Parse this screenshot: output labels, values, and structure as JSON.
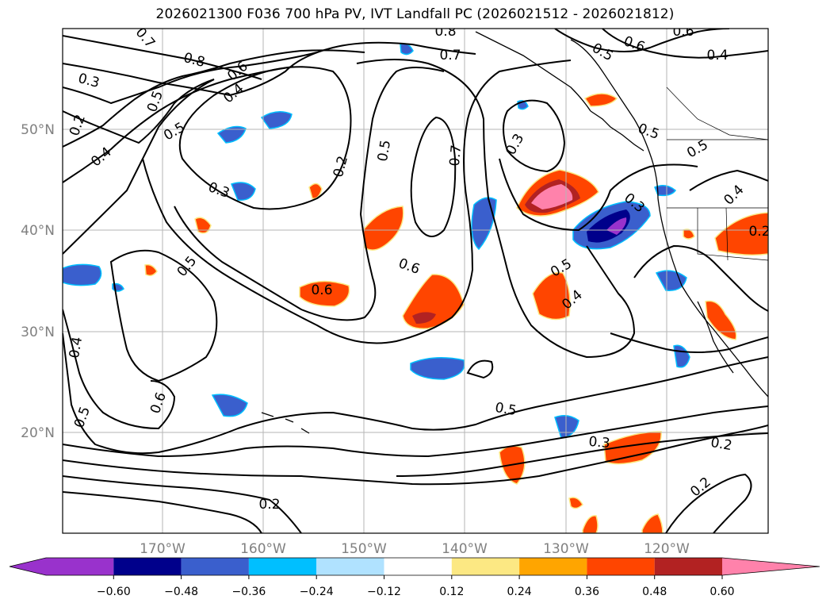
{
  "title": "2026021300 F036 700 hPa PV, IVT Landfall PC (2026021512 - 2026021812)",
  "lat_labels": [
    "50°N",
    "40°N",
    "30°N",
    "20°N"
  ],
  "lon_labels": [
    "170°W",
    "160°W",
    "150°W",
    "140°W",
    "130°W",
    "120°W"
  ],
  "colorbar": {
    "ticks": [
      "−0.60",
      "−0.48",
      "−0.36",
      "−0.24",
      "−0.12",
      "0.12",
      "0.24",
      "0.36",
      "0.48",
      "0.60"
    ],
    "colors": {
      "under": "#9932cc",
      "c1": "#00008b",
      "c2": "#3a5fcd",
      "c3": "#00bfff",
      "c4": "#b0e2ff",
      "c5": "#ffffff",
      "c6": "#fce883",
      "c7": "#ffa500",
      "c8": "#ff4500",
      "c9": "#b22222",
      "over": "#ff82ab"
    }
  },
  "contour_labels": [
    {
      "text": "0.7",
      "angle": 50
    },
    {
      "text": "0.8",
      "angle": 15
    },
    {
      "text": "0.3",
      "angle": 15
    },
    {
      "text": "0.6",
      "angle": -40
    },
    {
      "text": "0.5",
      "angle": -70
    },
    {
      "text": "0.4",
      "angle": -40
    },
    {
      "text": "0.2",
      "angle": -70
    },
    {
      "text": "0.5",
      "angle": -30
    },
    {
      "text": "0.4",
      "angle": -40
    },
    {
      "text": "0.3",
      "angle": 20
    },
    {
      "text": "0.2",
      "angle": -75
    },
    {
      "text": "0.5",
      "angle": -80
    },
    {
      "text": "0.7",
      "angle": -85
    },
    {
      "text": "0.3",
      "angle": -60
    },
    {
      "text": "0.8",
      "angle": 0
    },
    {
      "text": "0.7",
      "angle": 0
    },
    {
      "text": "0.5",
      "angle": 30
    },
    {
      "text": "0.6",
      "angle": 20
    },
    {
      "text": "0.6",
      "angle": 0
    },
    {
      "text": "0.4",
      "angle": 0
    },
    {
      "text": "0.5",
      "angle": 20
    },
    {
      "text": "0.5",
      "angle": -30
    },
    {
      "text": "0.3",
      "angle": 40
    },
    {
      "text": "0.6",
      "angle": 20
    },
    {
      "text": "0.5",
      "angle": -50
    },
    {
      "text": "0.6",
      "angle": 0
    },
    {
      "text": "0.4",
      "angle": -80
    },
    {
      "text": "0.5",
      "angle": -70
    },
    {
      "text": "0.6",
      "angle": -70
    },
    {
      "text": "0.5",
      "angle": 10
    },
    {
      "text": "0.3",
      "angle": 5
    },
    {
      "text": "0.2",
      "angle": 10
    },
    {
      "text": "0.2",
      "angle": -40
    },
    {
      "text": "0.2",
      "angle": 0
    },
    {
      "text": "0.5",
      "angle": -30
    },
    {
      "text": "0.4",
      "angle": -40
    },
    {
      "text": "0.4",
      "angle": -45
    },
    {
      "text": "0.2",
      "angle": 0
    }
  ]
}
